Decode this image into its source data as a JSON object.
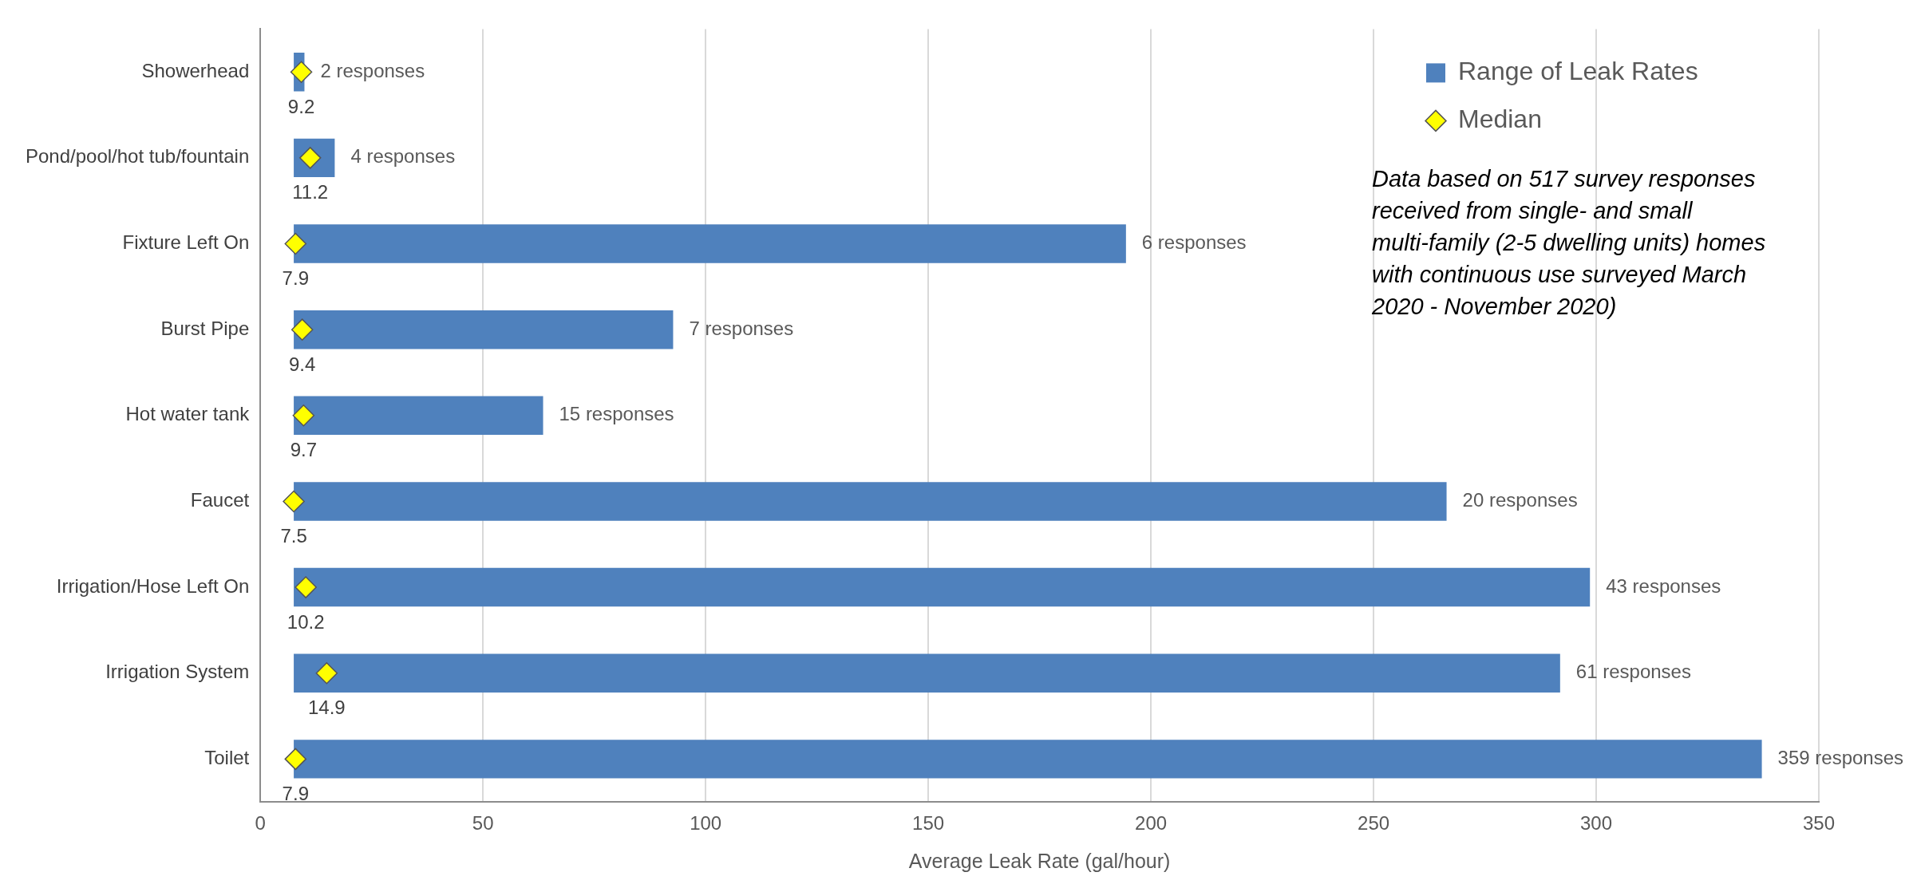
{
  "chart_data": {
    "type": "bar",
    "orientation": "horizontal",
    "xlabel": "Average Leak Rate (gal/hour)",
    "categories": [
      "Showerhead",
      "Pond/pool/hot tub/fountain",
      "Fixture Left On",
      "Burst Pipe",
      "Hot water tank",
      "Faucet",
      "Irrigation/Hose Left On",
      "Irrigation System",
      "Toilet"
    ],
    "series": [
      {
        "name": "Range of Leak Rates",
        "color": "#4f81bd",
        "base": [
          7.5,
          7.5,
          7.5,
          7.5,
          7.5,
          7.5,
          7.5,
          7.5,
          7.5
        ],
        "values": [
          2.4,
          9.2,
          186.9,
          85.2,
          56,
          258.9,
          291.1,
          284.4,
          329.7
        ]
      },
      {
        "type": "scatter",
        "name": "Median",
        "color": "#ffff00",
        "marker": "diamond",
        "values": [
          9.2,
          11.2,
          7.9,
          9.4,
          9.7,
          7.5,
          10.2,
          14.9,
          7.9
        ],
        "value_labels": [
          "9.2",
          "11.2",
          "7.9",
          "9.4",
          "9.7",
          "7.5",
          "10.2",
          "14.9",
          "7.9"
        ]
      }
    ],
    "xlim": [
      0,
      350
    ],
    "xticks": [
      0,
      50,
      100,
      150,
      200,
      250,
      300,
      350
    ],
    "grid": "x",
    "legend": "top right",
    "annotations": [
      {
        "text": "2 responses",
        "x": 9.9,
        "y": "Showerhead"
      },
      {
        "text": "4 responses",
        "x": 16.7,
        "y": "Pond/pool/hot tub/fountain"
      },
      {
        "text": "6 responses",
        "x": 194.4,
        "y": "Fixture Left On"
      },
      {
        "text": "7 responses",
        "x": 92.7,
        "y": "Burst Pipe"
      },
      {
        "text": "15 responses",
        "x": 63.5,
        "y": "Hot water tank"
      },
      {
        "text": "20 responses",
        "x": 266.4,
        "y": "Faucet"
      },
      {
        "text": "43 responses",
        "x": 298.6,
        "y": "Irrigation/Hose Left On"
      },
      {
        "text": "61 responses",
        "x": 291.9,
        "y": "Irrigation System"
      },
      {
        "text": "359 responses",
        "x": 337.2,
        "y": "Toilet"
      },
      "Data based on 517 survey responses received from single- and small multi-family (2-5 dwelling units) homes with continuous use surveyed March 2020 - November 2020)"
    ]
  }
}
